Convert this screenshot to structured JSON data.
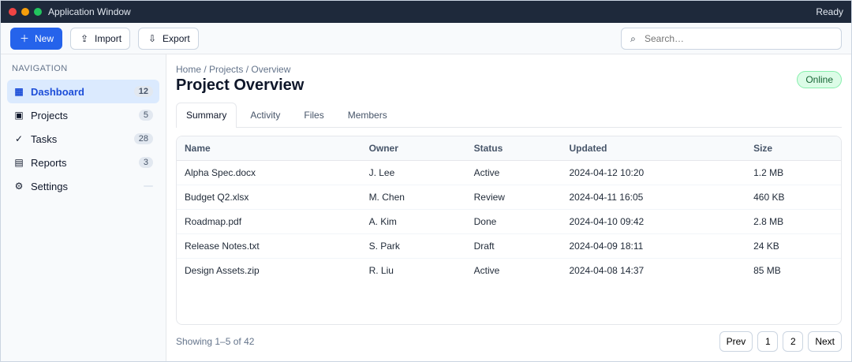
{
  "window": {
    "title": "Application Window",
    "right_status": "Ready"
  },
  "toolbar": {
    "new_label": "New",
    "import_label": "Import",
    "export_label": "Export",
    "search_placeholder": "Search…",
    "search_value": ""
  },
  "sidebar": {
    "section_title": "Navigation",
    "items": [
      {
        "label": "Dashboard",
        "count": "12"
      },
      {
        "label": "Projects",
        "count": "5"
      },
      {
        "label": "Tasks",
        "count": "28"
      },
      {
        "label": "Reports",
        "count": "3"
      },
      {
        "label": "Settings",
        "count": ""
      }
    ]
  },
  "main": {
    "breadcrumb": "Home / Projects / Overview",
    "title": "Project Overview",
    "status": "Online",
    "tabs": [
      {
        "label": "Summary"
      },
      {
        "label": "Activity"
      },
      {
        "label": "Files"
      },
      {
        "label": "Members"
      }
    ]
  },
  "table": {
    "headers": [
      "Name",
      "Owner",
      "Status",
      "Updated",
      "Size"
    ],
    "rows": [
      [
        "Alpha Spec.docx",
        "J. Lee",
        "Active",
        "2024-04-12 10:20",
        "1.2 MB"
      ],
      [
        "Budget Q2.xlsx",
        "M. Chen",
        "Review",
        "2024-04-11 16:05",
        "460 KB"
      ],
      [
        "Roadmap.pdf",
        "A. Kim",
        "Done",
        "2024-04-10 09:42",
        "2.8 MB"
      ],
      [
        "Release Notes.txt",
        "S. Park",
        "Draft",
        "2024-04-09 18:11",
        "24 KB"
      ],
      [
        "Design Assets.zip",
        "R. Liu",
        "Active",
        "2024-04-08 14:37",
        "85 MB"
      ]
    ]
  },
  "footer": {
    "info": "Showing 1–5 of 42",
    "prev": "Prev",
    "page_1": "1",
    "page_2": "2",
    "next": "Next"
  },
  "icons": {
    "new": "plus-icon",
    "import": "upload-icon",
    "export": "download-icon",
    "search": "search-icon",
    "dashboard": "grid-icon",
    "projects": "folder-icon",
    "tasks": "check-icon",
    "reports": "chart-icon",
    "settings": "gear-icon"
  },
  "colors": {
    "accent": "#2563eb",
    "success": "#22c55e",
    "warning": "#f59e0b",
    "danger": "#ef4444"
  }
}
